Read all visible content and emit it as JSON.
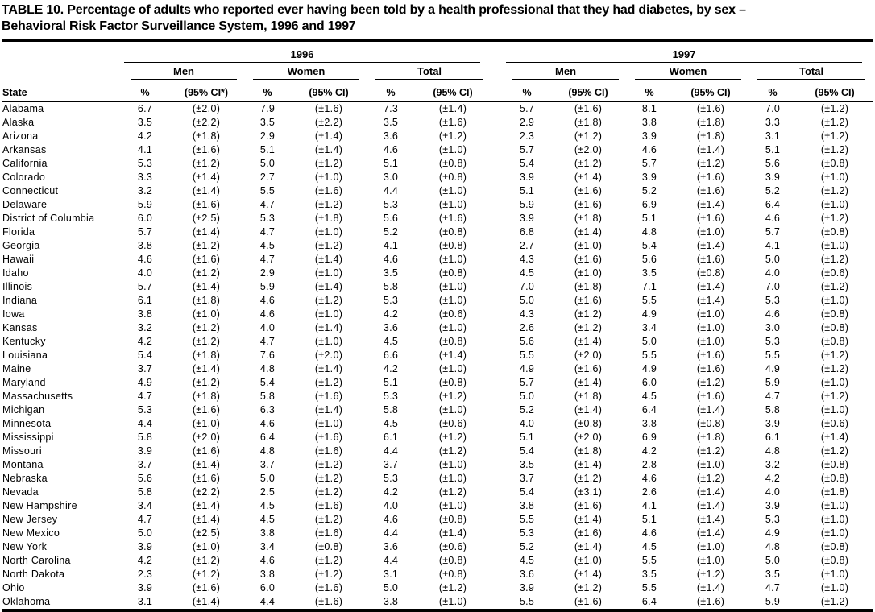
{
  "title": {
    "line1": "TABLE 10. Percentage of adults who reported ever having been told by a health professional that they had diabetes, by sex –",
    "line2": "Behavioral Risk Factor Surveillance System, 1996 and 1997"
  },
  "table": {
    "year_headers": [
      "1996",
      "1997"
    ],
    "group_headers": [
      "Men",
      "Women",
      "Total"
    ],
    "col_headers": [
      "State",
      "%",
      "(95% CI*)",
      "%",
      "(95% CI)",
      "%",
      "(95% CI)",
      "%",
      "(95% CI)",
      "%",
      "(95% CI)",
      "%",
      "(95% CI)"
    ],
    "rows": [
      {
        "state": "Alabama",
        "values": [
          "6.7",
          "(±2.0)",
          "7.9",
          "(±1.6)",
          "7.3",
          "(±1.4)",
          "5.7",
          "(±1.6)",
          "8.1",
          "(±1.6)",
          "7.0",
          "(±1.2)"
        ]
      },
      {
        "state": "Alaska",
        "values": [
          "3.5",
          "(±2.2)",
          "3.5",
          "(±2.2)",
          "3.5",
          "(±1.6)",
          "2.9",
          "(±1.8)",
          "3.8",
          "(±1.8)",
          "3.3",
          "(±1.2)"
        ]
      },
      {
        "state": "Arizona",
        "values": [
          "4.2",
          "(±1.8)",
          "2.9",
          "(±1.4)",
          "3.6",
          "(±1.2)",
          "2.3",
          "(±1.2)",
          "3.9",
          "(±1.8)",
          "3.1",
          "(±1.2)"
        ]
      },
      {
        "state": "Arkansas",
        "values": [
          "4.1",
          "(±1.6)",
          "5.1",
          "(±1.4)",
          "4.6",
          "(±1.0)",
          "5.7",
          "(±2.0)",
          "4.6",
          "(±1.4)",
          "5.1",
          "(±1.2)"
        ]
      },
      {
        "state": "California",
        "values": [
          "5.3",
          "(±1.2)",
          "5.0",
          "(±1.2)",
          "5.1",
          "(±0.8)",
          "5.4",
          "(±1.2)",
          "5.7",
          "(±1.2)",
          "5.6",
          "(±0.8)"
        ]
      },
      {
        "state": "Colorado",
        "values": [
          "3.3",
          "(±1.4)",
          "2.7",
          "(±1.0)",
          "3.0",
          "(±0.8)",
          "3.9",
          "(±1.4)",
          "3.9",
          "(±1.6)",
          "3.9",
          "(±1.0)"
        ]
      },
      {
        "state": "Connecticut",
        "values": [
          "3.2",
          "(±1.4)",
          "5.5",
          "(±1.6)",
          "4.4",
          "(±1.0)",
          "5.1",
          "(±1.6)",
          "5.2",
          "(±1.6)",
          "5.2",
          "(±1.2)"
        ]
      },
      {
        "state": "Delaware",
        "values": [
          "5.9",
          "(±1.6)",
          "4.7",
          "(±1.2)",
          "5.3",
          "(±1.0)",
          "5.9",
          "(±1.6)",
          "6.9",
          "(±1.4)",
          "6.4",
          "(±1.0)"
        ]
      },
      {
        "state": "District of Columbia",
        "values": [
          "6.0",
          "(±2.5)",
          "5.3",
          "(±1.8)",
          "5.6",
          "(±1.6)",
          "3.9",
          "(±1.8)",
          "5.1",
          "(±1.6)",
          "4.6",
          "(±1.2)"
        ]
      },
      {
        "state": "Florida",
        "values": [
          "5.7",
          "(±1.4)",
          "4.7",
          "(±1.0)",
          "5.2",
          "(±0.8)",
          "6.8",
          "(±1.4)",
          "4.8",
          "(±1.0)",
          "5.7",
          "(±0.8)"
        ]
      },
      {
        "state": "Georgia",
        "values": [
          "3.8",
          "(±1.2)",
          "4.5",
          "(±1.2)",
          "4.1",
          "(±0.8)",
          "2.7",
          "(±1.0)",
          "5.4",
          "(±1.4)",
          "4.1",
          "(±1.0)"
        ]
      },
      {
        "state": "Hawaii",
        "values": [
          "4.6",
          "(±1.6)",
          "4.7",
          "(±1.4)",
          "4.6",
          "(±1.0)",
          "4.3",
          "(±1.6)",
          "5.6",
          "(±1.6)",
          "5.0",
          "(±1.2)"
        ]
      },
      {
        "state": "Idaho",
        "values": [
          "4.0",
          "(±1.2)",
          "2.9",
          "(±1.0)",
          "3.5",
          "(±0.8)",
          "4.5",
          "(±1.0)",
          "3.5",
          "(±0.8)",
          "4.0",
          "(±0.6)"
        ]
      },
      {
        "state": "Illinois",
        "values": [
          "5.7",
          "(±1.4)",
          "5.9",
          "(±1.4)",
          "5.8",
          "(±1.0)",
          "7.0",
          "(±1.8)",
          "7.1",
          "(±1.4)",
          "7.0",
          "(±1.2)"
        ]
      },
      {
        "state": "Indiana",
        "values": [
          "6.1",
          "(±1.8)",
          "4.6",
          "(±1.2)",
          "5.3",
          "(±1.0)",
          "5.0",
          "(±1.6)",
          "5.5",
          "(±1.4)",
          "5.3",
          "(±1.0)"
        ]
      },
      {
        "state": "Iowa",
        "values": [
          "3.8",
          "(±1.0)",
          "4.6",
          "(±1.0)",
          "4.2",
          "(±0.6)",
          "4.3",
          "(±1.2)",
          "4.9",
          "(±1.0)",
          "4.6",
          "(±0.8)"
        ]
      },
      {
        "state": "Kansas",
        "values": [
          "3.2",
          "(±1.2)",
          "4.0",
          "(±1.4)",
          "3.6",
          "(±1.0)",
          "2.6",
          "(±1.2)",
          "3.4",
          "(±1.0)",
          "3.0",
          "(±0.8)"
        ]
      },
      {
        "state": "Kentucky",
        "values": [
          "4.2",
          "(±1.2)",
          "4.7",
          "(±1.0)",
          "4.5",
          "(±0.8)",
          "5.6",
          "(±1.4)",
          "5.0",
          "(±1.0)",
          "5.3",
          "(±0.8)"
        ]
      },
      {
        "state": "Louisiana",
        "values": [
          "5.4",
          "(±1.8)",
          "7.6",
          "(±2.0)",
          "6.6",
          "(±1.4)",
          "5.5",
          "(±2.0)",
          "5.5",
          "(±1.6)",
          "5.5",
          "(±1.2)"
        ]
      },
      {
        "state": "Maine",
        "values": [
          "3.7",
          "(±1.4)",
          "4.8",
          "(±1.4)",
          "4.2",
          "(±1.0)",
          "4.9",
          "(±1.6)",
          "4.9",
          "(±1.6)",
          "4.9",
          "(±1.2)"
        ]
      },
      {
        "state": "Maryland",
        "values": [
          "4.9",
          "(±1.2)",
          "5.4",
          "(±1.2)",
          "5.1",
          "(±0.8)",
          "5.7",
          "(±1.4)",
          "6.0",
          "(±1.2)",
          "5.9",
          "(±1.0)"
        ]
      },
      {
        "state": "Massachusetts",
        "values": [
          "4.7",
          "(±1.8)",
          "5.8",
          "(±1.6)",
          "5.3",
          "(±1.2)",
          "5.0",
          "(±1.8)",
          "4.5",
          "(±1.6)",
          "4.7",
          "(±1.2)"
        ]
      },
      {
        "state": "Michigan",
        "values": [
          "5.3",
          "(±1.6)",
          "6.3",
          "(±1.4)",
          "5.8",
          "(±1.0)",
          "5.2",
          "(±1.4)",
          "6.4",
          "(±1.4)",
          "5.8",
          "(±1.0)"
        ]
      },
      {
        "state": "Minnesota",
        "values": [
          "4.4",
          "(±1.0)",
          "4.6",
          "(±1.0)",
          "4.5",
          "(±0.6)",
          "4.0",
          "(±0.8)",
          "3.8",
          "(±0.8)",
          "3.9",
          "(±0.6)"
        ]
      },
      {
        "state": "Mississippi",
        "values": [
          "5.8",
          "(±2.0)",
          "6.4",
          "(±1.6)",
          "6.1",
          "(±1.2)",
          "5.1",
          "(±2.0)",
          "6.9",
          "(±1.8)",
          "6.1",
          "(±1.4)"
        ]
      },
      {
        "state": "Missouri",
        "values": [
          "3.9",
          "(±1.6)",
          "4.8",
          "(±1.6)",
          "4.4",
          "(±1.2)",
          "5.4",
          "(±1.8)",
          "4.2",
          "(±1.2)",
          "4.8",
          "(±1.2)"
        ]
      },
      {
        "state": "Montana",
        "values": [
          "3.7",
          "(±1.4)",
          "3.7",
          "(±1.2)",
          "3.7",
          "(±1.0)",
          "3.5",
          "(±1.4)",
          "2.8",
          "(±1.0)",
          "3.2",
          "(±0.8)"
        ]
      },
      {
        "state": "Nebraska",
        "values": [
          "5.6",
          "(±1.6)",
          "5.0",
          "(±1.2)",
          "5.3",
          "(±1.0)",
          "3.7",
          "(±1.2)",
          "4.6",
          "(±1.2)",
          "4.2",
          "(±0.8)"
        ]
      },
      {
        "state": "Nevada",
        "values": [
          "5.8",
          "(±2.2)",
          "2.5",
          "(±1.2)",
          "4.2",
          "(±1.2)",
          "5.4",
          "(±3.1)",
          "2.6",
          "(±1.4)",
          "4.0",
          "(±1.8)"
        ]
      },
      {
        "state": "New Hampshire",
        "values": [
          "3.4",
          "(±1.4)",
          "4.5",
          "(±1.6)",
          "4.0",
          "(±1.0)",
          "3.8",
          "(±1.6)",
          "4.1",
          "(±1.4)",
          "3.9",
          "(±1.0)"
        ]
      },
      {
        "state": "New Jersey",
        "values": [
          "4.7",
          "(±1.4)",
          "4.5",
          "(±1.2)",
          "4.6",
          "(±0.8)",
          "5.5",
          "(±1.4)",
          "5.1",
          "(±1.4)",
          "5.3",
          "(±1.0)"
        ]
      },
      {
        "state": "New Mexico",
        "values": [
          "5.0",
          "(±2.5)",
          "3.8",
          "(±1.6)",
          "4.4",
          "(±1.4)",
          "5.3",
          "(±1.6)",
          "4.6",
          "(±1.4)",
          "4.9",
          "(±1.0)"
        ]
      },
      {
        "state": "New York",
        "values": [
          "3.9",
          "(±1.0)",
          "3.4",
          "(±0.8)",
          "3.6",
          "(±0.6)",
          "5.2",
          "(±1.4)",
          "4.5",
          "(±1.0)",
          "4.8",
          "(±0.8)"
        ]
      },
      {
        "state": "North Carolina",
        "values": [
          "4.2",
          "(±1.2)",
          "4.6",
          "(±1.2)",
          "4.4",
          "(±0.8)",
          "4.5",
          "(±1.0)",
          "5.5",
          "(±1.0)",
          "5.0",
          "(±0.8)"
        ]
      },
      {
        "state": "North Dakota",
        "values": [
          "2.3",
          "(±1.2)",
          "3.8",
          "(±1.2)",
          "3.1",
          "(±0.8)",
          "3.6",
          "(±1.4)",
          "3.5",
          "(±1.2)",
          "3.5",
          "(±1.0)"
        ]
      },
      {
        "state": "Ohio",
        "values": [
          "3.9",
          "(±1.6)",
          "6.0",
          "(±1.6)",
          "5.0",
          "(±1.2)",
          "3.9",
          "(±1.2)",
          "5.5",
          "(±1.4)",
          "4.7",
          "(±1.0)"
        ]
      },
      {
        "state": "Oklahoma",
        "values": [
          "3.1",
          "(±1.4)",
          "4.4",
          "(±1.6)",
          "3.8",
          "(±1.0)",
          "5.5",
          "(±1.6)",
          "6.4",
          "(±1.6)",
          "5.9",
          "(±1.2)"
        ]
      }
    ]
  }
}
